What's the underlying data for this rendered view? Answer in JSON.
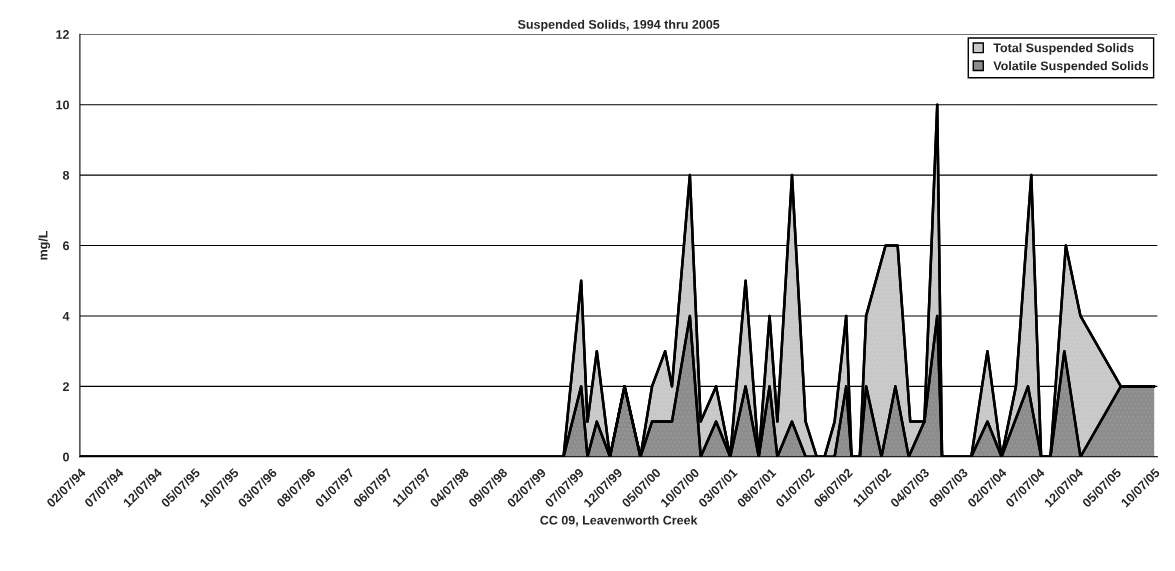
{
  "chart_data": {
    "type": "area",
    "title": "Suspended Solids, 1994 thru 2005",
    "xlabel": "CC 09, Leavenworth Creek",
    "ylabel": "mg/L",
    "xlim": [
      "1994-02-07",
      "2005-10-20"
    ],
    "ylim": [
      0,
      12
    ],
    "yticks": [
      0,
      2,
      4,
      6,
      8,
      10,
      12
    ],
    "xticks": [
      {
        "value": "1994-02-07",
        "label": "02/07/94"
      },
      {
        "value": "1994-07-07",
        "label": "07/07/94"
      },
      {
        "value": "1994-12-07",
        "label": "12/07/94"
      },
      {
        "value": "1995-05-07",
        "label": "05/07/95"
      },
      {
        "value": "1995-10-07",
        "label": "10/07/95"
      },
      {
        "value": "1996-03-07",
        "label": "03/07/96"
      },
      {
        "value": "1996-08-07",
        "label": "08/07/96"
      },
      {
        "value": "1997-01-07",
        "label": "01/07/97"
      },
      {
        "value": "1997-06-07",
        "label": "06/07/97"
      },
      {
        "value": "1997-11-07",
        "label": "11/07/97"
      },
      {
        "value": "1998-04-07",
        "label": "04/07/98"
      },
      {
        "value": "1998-09-07",
        "label": "09/07/98"
      },
      {
        "value": "1999-02-07",
        "label": "02/07/99"
      },
      {
        "value": "1999-07-07",
        "label": "07/07/99"
      },
      {
        "value": "1999-12-07",
        "label": "12/07/99"
      },
      {
        "value": "2000-05-07",
        "label": "05/07/00"
      },
      {
        "value": "2000-10-07",
        "label": "10/07/00"
      },
      {
        "value": "2001-03-07",
        "label": "03/07/01"
      },
      {
        "value": "2001-08-07",
        "label": "08/07/01"
      },
      {
        "value": "2002-01-07",
        "label": "01/07/02"
      },
      {
        "value": "2002-06-07",
        "label": "06/07/02"
      },
      {
        "value": "2002-11-07",
        "label": "11/07/02"
      },
      {
        "value": "2003-04-07",
        "label": "04/07/03"
      },
      {
        "value": "2003-09-07",
        "label": "09/07/03"
      },
      {
        "value": "2004-02-07",
        "label": "02/07/04"
      },
      {
        "value": "2004-07-07",
        "label": "07/07/04"
      },
      {
        "value": "2004-12-07",
        "label": "12/07/04"
      },
      {
        "value": "2005-05-07",
        "label": "05/07/05"
      },
      {
        "value": "2005-10-07",
        "label": "10/07/05"
      }
    ],
    "grid": "y",
    "legend": "top right",
    "series": [
      {
        "name": "Total Suspended Solids",
        "color": "#c8c8c8",
        "x": [
          "1994-02-07",
          "1999-05-10",
          "1999-07-19",
          "1999-08-13",
          "1999-09-19",
          "1999-11-10",
          "2000-01-07",
          "2000-03-10",
          "2000-04-25",
          "2000-06-16",
          "2000-07-13",
          "2000-09-22",
          "2000-11-04",
          "2001-01-04",
          "2001-03-01",
          "2001-05-01",
          "2001-06-22",
          "2001-08-04",
          "2001-09-04",
          "2001-11-01",
          "2001-12-25",
          "2002-02-07",
          "2002-03-10",
          "2002-04-19",
          "2002-06-04",
          "2002-06-25",
          "2002-07-28",
          "2002-08-22",
          "2002-11-07",
          "2002-12-25",
          "2003-02-13",
          "2003-04-10",
          "2003-05-31",
          "2003-06-19",
          "2003-10-13",
          "2003-12-16",
          "2004-02-10",
          "2004-04-07",
          "2004-06-07",
          "2004-07-16",
          "2004-08-22",
          "2004-10-22",
          "2004-12-19",
          "2005-05-28",
          "2005-10-07"
        ],
        "values": [
          0,
          0,
          5,
          1,
          3,
          0,
          2,
          0,
          2,
          3,
          2,
          8,
          1,
          2,
          0,
          5,
          0,
          4,
          1,
          8,
          1,
          0,
          0,
          1,
          4,
          0,
          0,
          4,
          6,
          6,
          1,
          1,
          10,
          0,
          0,
          3,
          0,
          2,
          8,
          0,
          0,
          6,
          4,
          2,
          2
        ]
      },
      {
        "name": "Volatile Suspended Solids",
        "color": "#8c8c8c",
        "x": [
          "1994-02-07",
          "1999-05-10",
          "1999-07-19",
          "1999-08-13",
          "1999-09-19",
          "1999-11-10",
          "2000-01-07",
          "2000-03-10",
          "2000-04-25",
          "2000-07-13",
          "2000-09-22",
          "2000-11-04",
          "2001-01-04",
          "2001-03-01",
          "2001-05-01",
          "2001-06-22",
          "2001-08-04",
          "2001-09-04",
          "2001-11-01",
          "2001-12-25",
          "2002-04-19",
          "2002-06-04",
          "2002-06-25",
          "2002-07-28",
          "2002-08-22",
          "2002-10-22",
          "2002-12-16",
          "2003-02-07",
          "2003-04-10",
          "2003-05-31",
          "2003-06-19",
          "2003-10-13",
          "2003-12-16",
          "2004-02-10",
          "2004-05-25",
          "2004-07-16",
          "2004-08-22",
          "2004-10-16",
          "2004-12-19",
          "2005-05-28",
          "2005-10-07"
        ],
        "values": [
          0,
          0,
          2,
          0,
          1,
          0,
          2,
          0,
          1,
          1,
          4,
          0,
          1,
          0,
          2,
          0,
          2,
          0,
          1,
          0,
          0,
          2,
          0,
          0,
          2,
          0,
          2,
          0,
          1,
          4,
          0,
          0,
          1,
          0,
          2,
          0,
          0,
          3,
          0,
          2,
          2
        ]
      }
    ]
  }
}
